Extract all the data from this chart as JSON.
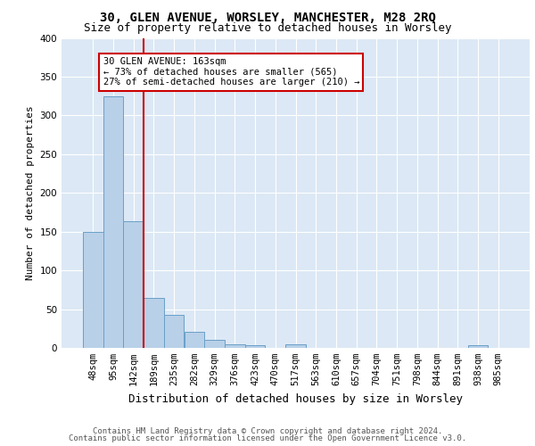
{
  "title_line1": "30, GLEN AVENUE, WORSLEY, MANCHESTER, M28 2RQ",
  "title_line2": "Size of property relative to detached houses in Worsley",
  "xlabel": "Distribution of detached houses by size in Worsley",
  "ylabel": "Number of detached properties",
  "categories": [
    "48sqm",
    "95sqm",
    "142sqm",
    "189sqm",
    "235sqm",
    "282sqm",
    "329sqm",
    "376sqm",
    "423sqm",
    "470sqm",
    "517sqm",
    "563sqm",
    "610sqm",
    "657sqm",
    "704sqm",
    "751sqm",
    "798sqm",
    "844sqm",
    "891sqm",
    "938sqm",
    "985sqm"
  ],
  "values": [
    150,
    325,
    163,
    65,
    43,
    21,
    10,
    5,
    3,
    0,
    5,
    0,
    0,
    0,
    0,
    0,
    0,
    0,
    0,
    4,
    0
  ],
  "bar_color": "#b8d0e8",
  "bar_edge_color": "#6aa0c8",
  "vline_color": "#cc0000",
  "annotation_text": "30 GLEN AVENUE: 163sqm\n← 73% of detached houses are smaller (565)\n27% of semi-detached houses are larger (210) →",
  "annotation_box_color": "white",
  "annotation_box_edge_color": "#cc0000",
  "ylim": [
    0,
    400
  ],
  "yticks": [
    0,
    50,
    100,
    150,
    200,
    250,
    300,
    350,
    400
  ],
  "background_color": "#dce8f5",
  "footer_line1": "Contains HM Land Registry data © Crown copyright and database right 2024.",
  "footer_line2": "Contains public sector information licensed under the Open Government Licence v3.0.",
  "title_fontsize": 10,
  "subtitle_fontsize": 9,
  "xlabel_fontsize": 9,
  "ylabel_fontsize": 8,
  "tick_fontsize": 7.5,
  "footer_fontsize": 6.5
}
